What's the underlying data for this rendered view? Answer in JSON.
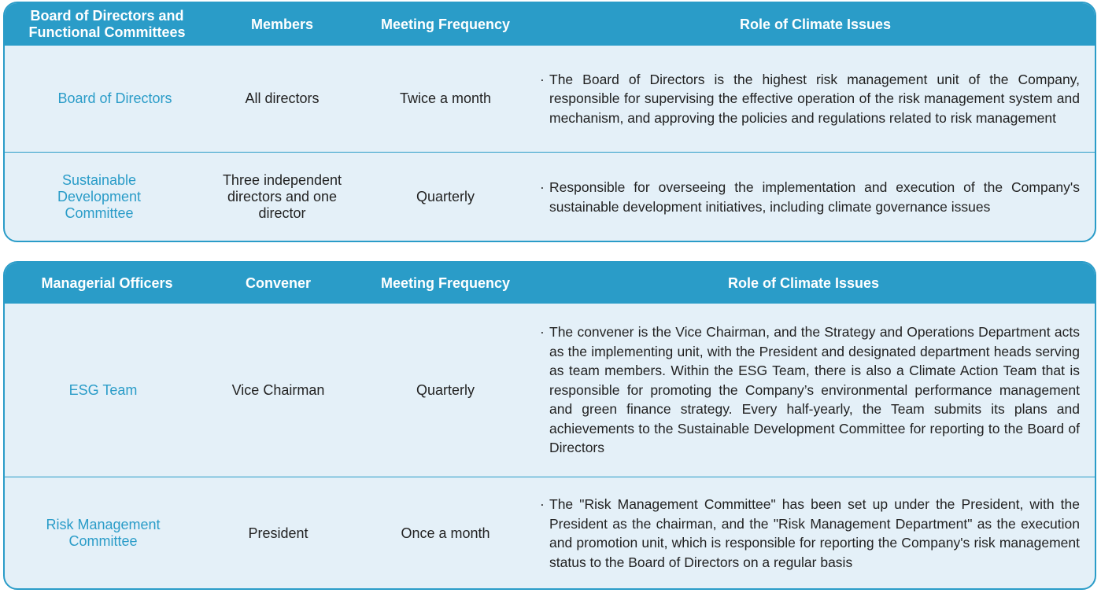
{
  "governance_table": {
    "headers": [
      "Board of Directors and Functional Committees",
      "Members",
      "Meeting Frequency",
      "Role of Climate Issues"
    ],
    "rows": [
      {
        "name": "Board of Directors",
        "members": "All directors",
        "frequency": "Twice a month",
        "role": "The Board of Directors is the highest risk management unit of the Company, responsible for supervising the effective operation of the risk management system and mechanism, and approving the policies and regulations related to risk management"
      },
      {
        "name": "Sustainable Development Committee",
        "members": "Three independent directors and one director",
        "frequency": "Quarterly",
        "role": "Responsible for overseeing the implementation and execution of the Company's sustainable development initiatives, including climate governance issues"
      }
    ]
  },
  "management_table": {
    "headers": [
      "Managerial Officers",
      "Convener",
      "Meeting Frequency",
      "Role of Climate Issues"
    ],
    "rows": [
      {
        "name": "ESG Team",
        "convener": "Vice Chairman",
        "frequency": "Quarterly",
        "role": "The convener is the Vice Chairman, and the Strategy and Operations Department acts as the implementing unit, with the President and designated department heads serving as team members. Within the ESG Team, there is also a Climate Action Team that is responsible for promoting the Company’s environmental performance management and green finance strategy. Every half-yearly, the Team submits its plans and achievements to the Sustainable Development Committee for reporting to the Board of Directors"
      },
      {
        "name": "Risk Management Committee",
        "convener": "President",
        "frequency": "Once a month",
        "role": "The \"Risk Management Committee\" has been set up under the President, with the President as the chairman, and the \"Risk Management Department\" as the execution and promotion unit, which is responsible for reporting the Company's risk management status to the Board of Directors on a regular basis"
      }
    ]
  },
  "bullet": "·",
  "colors": {
    "accent": "#2a9cc8",
    "panel_bg": "#e4f0f8",
    "text": "#222222"
  }
}
